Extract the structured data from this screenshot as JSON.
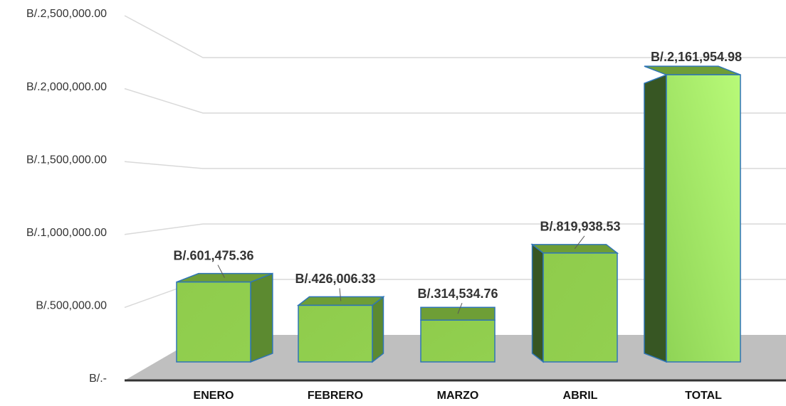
{
  "chart_data": {
    "type": "bar3d",
    "categories": [
      "ENERO",
      "FEBRERO",
      "MARZO",
      "ABRIL",
      "TOTAL"
    ],
    "values": [
      601475.36,
      426006.33,
      314534.76,
      819938.53,
      2161954.98
    ],
    "value_labels": [
      "B/.601,475.36",
      "B/.426,006.33",
      "B/.314,534.76",
      "B/.819,938.53",
      "B/.2,161,954.98"
    ],
    "color": "#92d050",
    "ylim": [
      0,
      2500000
    ],
    "yticks": [
      {
        "value": 0,
        "label": "B/.-"
      },
      {
        "value": 500000,
        "label": "B/.500,000.00"
      },
      {
        "value": 1000000,
        "label": "B/.1,000,000.00"
      },
      {
        "value": 1500000,
        "label": "B/.1,500,000.00"
      },
      {
        "value": 2000000,
        "label": "B/.2,000,000.00"
      },
      {
        "value": 2500000,
        "label": "B/.2,500,000.00"
      }
    ],
    "grid": true
  }
}
